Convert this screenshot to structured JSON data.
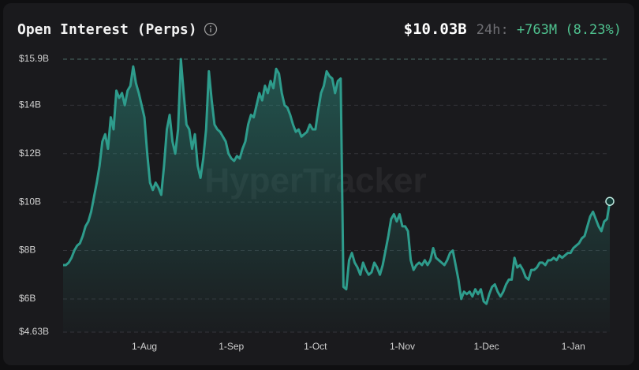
{
  "chart_data": {
    "type": "area",
    "title": "Open Interest (Perps)",
    "current_value": "$10.03B",
    "change_period": "24h:",
    "change": "+763M (8.23%)",
    "watermark": "HyperTracker",
    "color": "#2e9c8c",
    "grid": true,
    "ylim": [
      4.63,
      15.9
    ],
    "yticks": [
      {
        "value": 15.9,
        "label": "$15.9B"
      },
      {
        "value": 14,
        "label": "$14B"
      },
      {
        "value": 12,
        "label": "$12B"
      },
      {
        "value": 10,
        "label": "$10B"
      },
      {
        "value": 8,
        "label": "$8B"
      },
      {
        "value": 6,
        "label": "$6B"
      },
      {
        "value": 4.63,
        "label": "$4.63B"
      }
    ],
    "categories": [
      null,
      null,
      null,
      null,
      null,
      null,
      null,
      null,
      null,
      null,
      null,
      null,
      null,
      null,
      null,
      null,
      null,
      null,
      null,
      null,
      null,
      null,
      null,
      null,
      null,
      null,
      null,
      null,
      null,
      "1-Aug",
      null,
      null,
      null,
      null,
      null,
      null,
      null,
      null,
      null,
      null,
      null,
      null,
      null,
      null,
      null,
      null,
      null,
      null,
      null,
      null,
      null,
      null,
      null,
      null,
      null,
      null,
      null,
      null,
      null,
      null,
      "1-Sep",
      null,
      null,
      null,
      null,
      null,
      null,
      null,
      null,
      null,
      null,
      null,
      null,
      null,
      null,
      null,
      null,
      null,
      null,
      null,
      null,
      null,
      null,
      null,
      null,
      null,
      null,
      null,
      null,
      null,
      "1-Oct",
      null,
      null,
      null,
      null,
      null,
      null,
      null,
      null,
      null,
      null,
      null,
      null,
      null,
      null,
      null,
      null,
      null,
      null,
      null,
      null,
      null,
      null,
      null,
      null,
      null,
      null,
      null,
      null,
      null,
      null,
      "1-Nov",
      null,
      null,
      null,
      null,
      null,
      null,
      null,
      null,
      null,
      null,
      null,
      null,
      null,
      null,
      null,
      null,
      null,
      null,
      null,
      null,
      null,
      null,
      null,
      null,
      null,
      null,
      null,
      null,
      null,
      "1-Dec",
      null,
      null,
      null,
      null,
      null,
      null,
      null,
      null,
      null,
      null,
      null,
      null,
      null,
      null,
      null,
      null,
      null,
      null,
      null,
      null,
      null,
      null,
      null,
      null,
      null,
      null,
      null,
      null,
      null,
      null,
      "1-Jan",
      null,
      null,
      null,
      null,
      null,
      null,
      null,
      null,
      null,
      null,
      null,
      null,
      null
    ],
    "values": [
      7.4,
      7.4,
      7.5,
      7.7,
      8.0,
      8.2,
      8.3,
      8.6,
      9.0,
      9.2,
      9.6,
      10.2,
      10.8,
      11.5,
      12.5,
      12.8,
      12.2,
      13.5,
      13.0,
      14.6,
      14.3,
      14.5,
      14.0,
      14.6,
      14.8,
      15.6,
      14.9,
      14.5,
      14.0,
      13.5,
      12.0,
      10.8,
      10.5,
      10.8,
      10.6,
      10.3,
      11.5,
      13.0,
      13.6,
      12.5,
      12.0,
      13.0,
      15.9,
      14.5,
      13.2,
      13.0,
      12.2,
      12.8,
      11.5,
      11.0,
      11.8,
      13.0,
      15.4,
      14.2,
      13.2,
      13.0,
      12.9,
      12.7,
      12.5,
      12.0,
      11.8,
      11.7,
      11.9,
      11.8,
      12.2,
      12.5,
      13.2,
      13.6,
      13.5,
      14.0,
      14.5,
      14.2,
      14.8,
      14.5,
      15.0,
      14.7,
      15.5,
      15.3,
      14.5,
      14.0,
      13.9,
      13.6,
      13.2,
      12.9,
      13.0,
      12.7,
      12.8,
      12.9,
      13.2,
      13.0,
      13.0,
      13.8,
      14.5,
      14.8,
      15.4,
      15.2,
      15.1,
      14.5,
      15.0,
      15.1,
      6.5,
      6.4,
      7.6,
      7.9,
      7.5,
      7.3,
      7.0,
      7.5,
      7.2,
      7.0,
      7.1,
      7.5,
      7.3,
      7.0,
      7.4,
      8.0,
      8.6,
      9.3,
      9.5,
      9.2,
      9.5,
      9.0,
      9.0,
      8.8,
      7.6,
      7.2,
      7.4,
      7.5,
      7.4,
      7.6,
      7.4,
      7.6,
      8.1,
      7.7,
      7.6,
      7.5,
      7.4,
      7.6,
      7.9,
      8.0,
      7.4,
      6.8,
      6.0,
      6.3,
      6.2,
      6.3,
      6.1,
      6.4,
      6.2,
      6.4,
      5.9,
      5.8,
      6.2,
      6.5,
      6.6,
      6.3,
      6.1,
      6.3,
      6.6,
      6.8,
      6.8,
      7.7,
      7.3,
      7.4,
      7.2,
      6.9,
      6.8,
      7.2,
      7.2,
      7.3,
      7.5,
      7.5,
      7.4,
      7.6,
      7.6,
      7.7,
      7.6,
      7.8,
      7.7,
      7.8,
      7.9,
      7.9,
      8.1,
      8.2,
      8.3,
      8.5,
      8.6,
      9.0,
      9.4,
      9.6,
      9.3,
      9.0,
      8.8,
      9.2,
      9.3,
      10.03
    ]
  }
}
